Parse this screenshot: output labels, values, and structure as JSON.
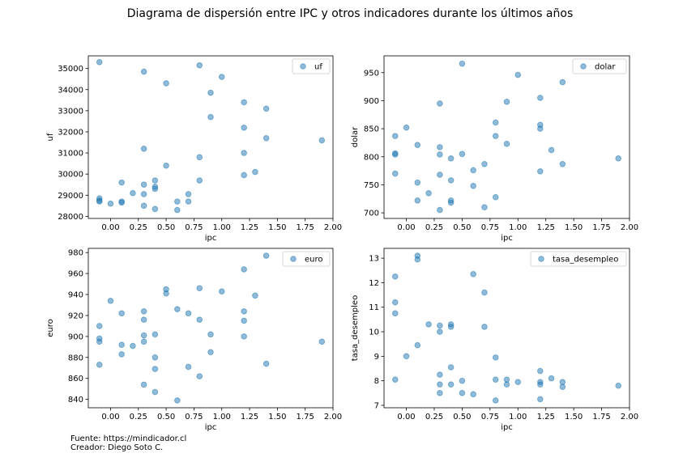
{
  "title": "Diagrama de dispersión entre IPC y otros indicadores durante los últimos años",
  "footer": {
    "source": "Fuente: https://mindicador.cl",
    "creator": "Creador: Diego Soto C."
  },
  "colors": {
    "point": "#1f77b4"
  },
  "chart_data": [
    {
      "type": "scatter",
      "series": [
        {
          "name": "uf",
          "x": [
            -0.1,
            -0.1,
            -0.1,
            -0.1,
            0,
            0.1,
            0.1,
            0.1,
            0.2,
            0.3,
            0.3,
            0.3,
            0.3,
            0.3,
            0.4,
            0.4,
            0.4,
            0.4,
            0.5,
            0.5,
            0.6,
            0.6,
            0.7,
            0.7,
            0.8,
            0.8,
            0.8,
            0.9,
            0.9,
            1.0,
            1.2,
            1.2,
            1.2,
            1.2,
            1.3,
            1.4,
            1.4,
            1.9
          ],
          "y": [
            35300,
            28850,
            28750,
            28700,
            28600,
            29600,
            28700,
            28650,
            29100,
            34850,
            31200,
            29500,
            29050,
            28500,
            29700,
            29400,
            29300,
            28350,
            34300,
            30400,
            28700,
            28300,
            29050,
            28700,
            35150,
            30800,
            29700,
            33850,
            32700,
            34600,
            33400,
            32200,
            31000,
            29950,
            30100,
            33100,
            31700,
            31600
          ]
        }
      ],
      "xlabel": "ipc",
      "ylabel": "uf",
      "xlim": [
        -0.2,
        2.0
      ],
      "ylim": [
        27900,
        35600
      ],
      "xticks": [
        "0.00",
        "0.25",
        "0.50",
        "0.75",
        "1.00",
        "1.25",
        "1.50",
        "1.75",
        "2.00"
      ],
      "yticks": [
        "28000",
        "29000",
        "30000",
        "31000",
        "32000",
        "33000",
        "34000",
        "35000"
      ],
      "legend": "top-right"
    },
    {
      "type": "scatter",
      "series": [
        {
          "name": "dolar",
          "x": [
            -0.1,
            -0.1,
            -0.1,
            -0.1,
            0,
            0.1,
            0.1,
            0.1,
            0.2,
            0.3,
            0.3,
            0.3,
            0.3,
            0.3,
            0.4,
            0.4,
            0.4,
            0.4,
            0.5,
            0.5,
            0.6,
            0.6,
            0.7,
            0.7,
            0.8,
            0.8,
            0.8,
            0.9,
            0.9,
            1.0,
            1.2,
            1.2,
            1.2,
            1.2,
            1.3,
            1.4,
            1.4,
            1.9
          ],
          "y": [
            837,
            806,
            804,
            770,
            852,
            821,
            754,
            722,
            735,
            895,
            817,
            804,
            768,
            705,
            797,
            758,
            722,
            718,
            966,
            805,
            776,
            748,
            787,
            710,
            861,
            837,
            728,
            898,
            823,
            946,
            905,
            857,
            850,
            774,
            812,
            933,
            787,
            797
          ]
        }
      ],
      "xlabel": "ipc",
      "ylabel": "dolar",
      "xlim": [
        -0.2,
        2.0
      ],
      "ylim": [
        690,
        980
      ],
      "xticks": [
        "0.00",
        "0.25",
        "0.50",
        "0.75",
        "1.00",
        "1.25",
        "1.50",
        "1.75",
        "2.00"
      ],
      "yticks": [
        "700",
        "750",
        "800",
        "850",
        "900",
        "950"
      ],
      "legend": "top-right"
    },
    {
      "type": "scatter",
      "series": [
        {
          "name": "euro",
          "x": [
            -0.1,
            -0.1,
            -0.1,
            -0.1,
            0,
            0.1,
            0.1,
            0.1,
            0.2,
            0.3,
            0.3,
            0.3,
            0.3,
            0.3,
            0.4,
            0.4,
            0.4,
            0.4,
            0.5,
            0.5,
            0.6,
            0.6,
            0.7,
            0.7,
            0.8,
            0.8,
            0.8,
            0.9,
            0.9,
            1.0,
            1.2,
            1.2,
            1.2,
            1.2,
            1.3,
            1.4,
            1.4,
            1.9
          ],
          "y": [
            910,
            898,
            895,
            873,
            934,
            922,
            892,
            883,
            891,
            924,
            916,
            901,
            895,
            854,
            902,
            880,
            869,
            847,
            945,
            941,
            926,
            839,
            922,
            871,
            946,
            916,
            862,
            902,
            885,
            943,
            964,
            924,
            915,
            900,
            939,
            977,
            874,
            895
          ]
        }
      ],
      "xlabel": "ipc",
      "ylabel": "euro",
      "xlim": [
        -0.2,
        2.0
      ],
      "ylim": [
        832,
        984
      ],
      "xticks": [
        "0.00",
        "0.25",
        "0.50",
        "0.75",
        "1.00",
        "1.25",
        "1.50",
        "1.75",
        "2.00"
      ],
      "yticks": [
        "840",
        "860",
        "880",
        "900",
        "920",
        "940",
        "960",
        "980"
      ],
      "legend": "top-right"
    },
    {
      "type": "scatter",
      "series": [
        {
          "name": "tasa_desempleo",
          "x": [
            -0.1,
            -0.1,
            -0.1,
            -0.1,
            0,
            0.1,
            0.1,
            0.1,
            0.2,
            0.3,
            0.3,
            0.3,
            0.3,
            0.3,
            0.4,
            0.4,
            0.4,
            0.4,
            0.5,
            0.5,
            0.6,
            0.6,
            0.7,
            0.7,
            0.8,
            0.8,
            0.8,
            0.9,
            0.9,
            1.0,
            1.2,
            1.2,
            1.2,
            1.2,
            1.3,
            1.4,
            1.4,
            1.9
          ],
          "y": [
            12.25,
            11.2,
            10.75,
            8.05,
            9.0,
            13.1,
            12.95,
            9.45,
            10.3,
            10.25,
            10.0,
            8.25,
            7.85,
            7.5,
            10.3,
            10.2,
            8.55,
            7.85,
            8.0,
            7.5,
            12.35,
            7.45,
            11.6,
            10.2,
            8.95,
            8.05,
            7.2,
            8.05,
            7.85,
            7.95,
            8.4,
            7.95,
            7.85,
            7.25,
            8.1,
            7.95,
            7.75,
            7.8
          ]
        }
      ],
      "xlabel": "ipc",
      "ylabel": "tasa_desempleo",
      "xlim": [
        -0.2,
        2.0
      ],
      "ylim": [
        6.9,
        13.4
      ],
      "xticks": [
        "0.00",
        "0.25",
        "0.50",
        "0.75",
        "1.00",
        "1.25",
        "1.50",
        "1.75",
        "2.00"
      ],
      "yticks": [
        "7",
        "8",
        "9",
        "10",
        "11",
        "12",
        "13"
      ],
      "legend": "top-right"
    }
  ]
}
